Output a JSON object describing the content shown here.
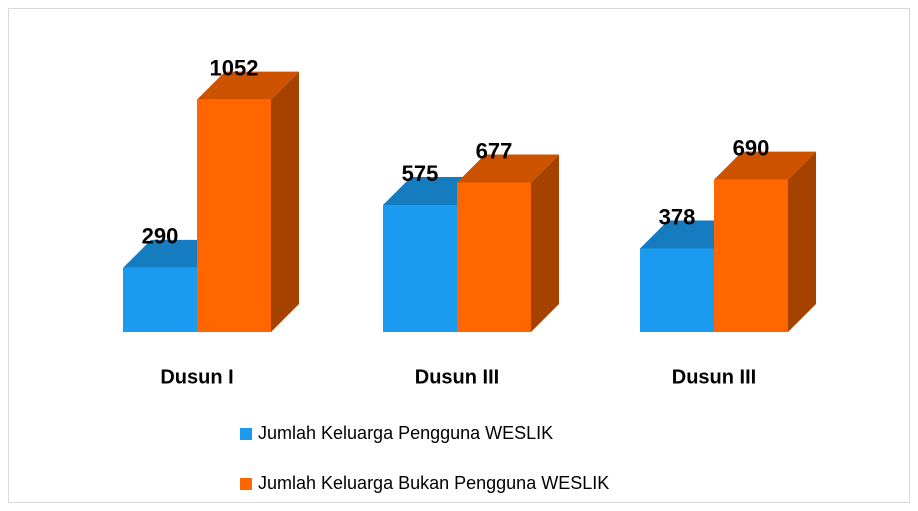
{
  "chart_data": {
    "type": "bar3d",
    "categories": [
      "Dusun I",
      "Dusun III",
      "Dusun III"
    ],
    "series": [
      {
        "name": "Jumlah Keluarga Pengguna WESLIK",
        "color": "#1a9bf0",
        "values": [
          290,
          575,
          378
        ]
      },
      {
        "name": "Jumlah Keluarga Bukan Pengguna WESLIK",
        "color": "#ff6600",
        "values": [
          1052,
          677,
          690
        ]
      }
    ],
    "ylim": [
      0,
      1100
    ],
    "legend": "bottom"
  }
}
